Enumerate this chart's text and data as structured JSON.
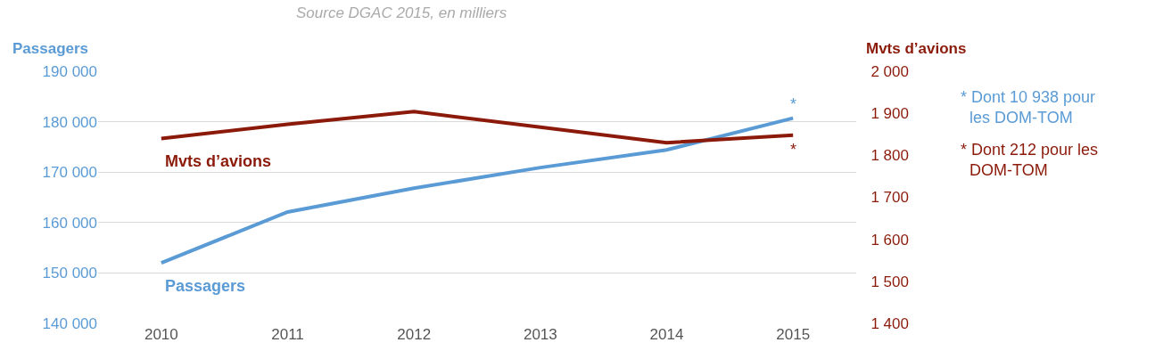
{
  "chart_data": {
    "type": "line",
    "title": "Source DGAC 2015, en milliers",
    "ylabel": "Passagers",
    "y2label": "Mvts d’avions",
    "categories": [
      "2010",
      "2011",
      "2012",
      "2013",
      "2014",
      "2015"
    ],
    "series": [
      {
        "name": "Passagers",
        "color": "#5b9bd5",
        "values": [
          152000,
          162100,
          166800,
          170900,
          174400,
          180700
        ],
        "value_labels": [
          null,
          null,
          null,
          null,
          null,
          "*"
        ]
      },
      {
        "name": "Mvts d’avions",
        "color": "#8b1a0a",
        "axis": "y2",
        "values": [
          1840,
          1874,
          1904,
          1867,
          1830,
          1848
        ],
        "value_labels": [
          null,
          null,
          null,
          null,
          null,
          "*"
        ]
      }
    ],
    "ylim": [
      140000,
      190000
    ],
    "yticks": [
      {
        "value": 140000,
        "label": "140 000"
      },
      {
        "value": 150000,
        "label": "150 000"
      },
      {
        "value": 160000,
        "label": "160 000"
      },
      {
        "value": 170000,
        "label": "170 000"
      },
      {
        "value": 180000,
        "label": "180 000"
      },
      {
        "value": 190000,
        "label": "190 000"
      }
    ],
    "y2lim": [
      1400,
      2000
    ],
    "y2ticks": [
      {
        "value": 1400,
        "label": "1 400"
      },
      {
        "value": 1500,
        "label": "1 500"
      },
      {
        "value": 1600,
        "label": "1 600"
      },
      {
        "value": 1700,
        "label": "1 700"
      },
      {
        "value": 1800,
        "label": "1 800"
      },
      {
        "value": 1900,
        "label": "1 900"
      },
      {
        "value": 2000,
        "label": "2 000"
      }
    ],
    "annotations": [
      "* Dont 10 938 pour les DOM-TOM",
      "* Dont 212 pour les DOM-TOM"
    ],
    "grid": "y",
    "legend": false,
    "marker": "none",
    "line_style": "solid"
  }
}
